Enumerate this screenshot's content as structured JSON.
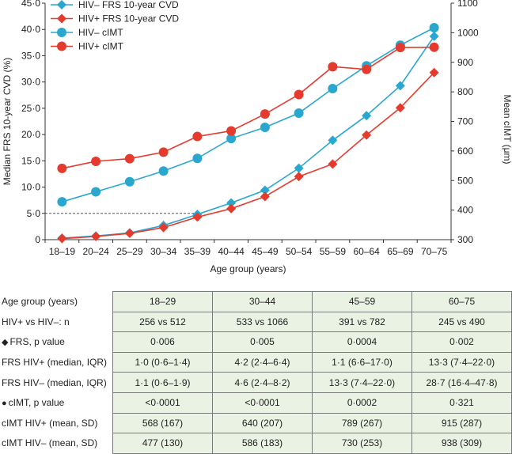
{
  "chart_data": {
    "type": "line",
    "categories": [
      "18–19",
      "20–24",
      "25–29",
      "30–34",
      "35–39",
      "40–44",
      "45–49",
      "50–54",
      "55–59",
      "60–64",
      "65–69",
      "70–75"
    ],
    "xlabel": "Age group (years)",
    "ylabel_left": "Median FRS 10-year CVD (%)",
    "ylabel_right": "Mean cIMT (μm)",
    "ylim_left": [
      0,
      45
    ],
    "ylim_right": [
      300,
      1100
    ],
    "yticks_left": [
      "0",
      "5·0",
      "10·0",
      "15·0",
      "20·0",
      "25·0",
      "30·0",
      "35·0",
      "40·0",
      "45·0"
    ],
    "yticks_right": [
      "300",
      "400",
      "500",
      "600",
      "700",
      "800",
      "900",
      "1000",
      "1100"
    ],
    "reference_line": {
      "axis": "left",
      "value": 5
    },
    "legend_position": "top-left",
    "series": [
      {
        "name": "HIV– FRS 10-year CVD",
        "axis": "left",
        "marker": "diamond",
        "color": "#2aa7cf",
        "values": [
          0.3,
          0.7,
          1.3,
          2.7,
          4.8,
          7.0,
          9.4,
          13.6,
          18.9,
          23.6,
          29.3,
          38.7
        ]
      },
      {
        "name": "HIV+ FRS 10-year CVD",
        "axis": "left",
        "marker": "diamond",
        "color": "#e53b2f",
        "values": [
          0.2,
          0.6,
          1.2,
          2.3,
          4.3,
          5.9,
          8.2,
          12.0,
          14.4,
          19.9,
          25.1,
          31.8
        ]
      },
      {
        "name": "HIV– cIMT",
        "axis": "right",
        "marker": "circle",
        "color": "#2aa7cf",
        "values": [
          428,
          462,
          496,
          532,
          575,
          642,
          680,
          728,
          811,
          888,
          958,
          1017
        ]
      },
      {
        "name": "HIV+ cIMT",
        "axis": "right",
        "marker": "circle",
        "color": "#e53b2f",
        "values": [
          541,
          565,
          574,
          596,
          649,
          668,
          725,
          791,
          885,
          876,
          950,
          951
        ]
      }
    ]
  },
  "table": {
    "columns": [
      "18–29",
      "30–44",
      "45–59",
      "60–75"
    ],
    "rows": [
      {
        "label": "Age group (years)",
        "cells": [
          "18–29",
          "30–44",
          "45–59",
          "60–75"
        ]
      },
      {
        "label": "HIV+ vs HIV–: n",
        "cells": [
          "256 vs 512",
          "533 vs 1066",
          "391 vs 782",
          "245 vs 490"
        ]
      },
      {
        "label": "FRS, p value",
        "symbol": "◆",
        "cells": [
          "0·006",
          "0·005",
          "0·0004",
          "0·002"
        ]
      },
      {
        "label": "FRS HIV+ (median, IQR)",
        "cells": [
          "1·0 (0·6–1·4)",
          "4·2 (2·4–6·4)",
          "1·1 (6·6–17·0)",
          "13·3 (7·4–22·0)"
        ]
      },
      {
        "label": "FRS HIV– (median, IQR)",
        "cells": [
          "1·1 (0·6–1·9)",
          "4·6 (2·4–8·2)",
          "13·3 (7·4–22·0)",
          "28·7 (16·4–47·8)"
        ]
      },
      {
        "label": "cIMT, p value",
        "symbol": "●",
        "cells": [
          "<0·0001",
          "<0·0001",
          "0·0002",
          "0·321"
        ]
      },
      {
        "label": "cIMT HIV+ (mean, SD)",
        "cells": [
          "568 (167)",
          "640 (207)",
          "789 (267)",
          "915 (287)"
        ]
      },
      {
        "label": "cIMT HIV– (mean, SD)",
        "cells": [
          "477 (130)",
          "586 (183)",
          "730 (253)",
          "938 (309)"
        ]
      }
    ]
  }
}
